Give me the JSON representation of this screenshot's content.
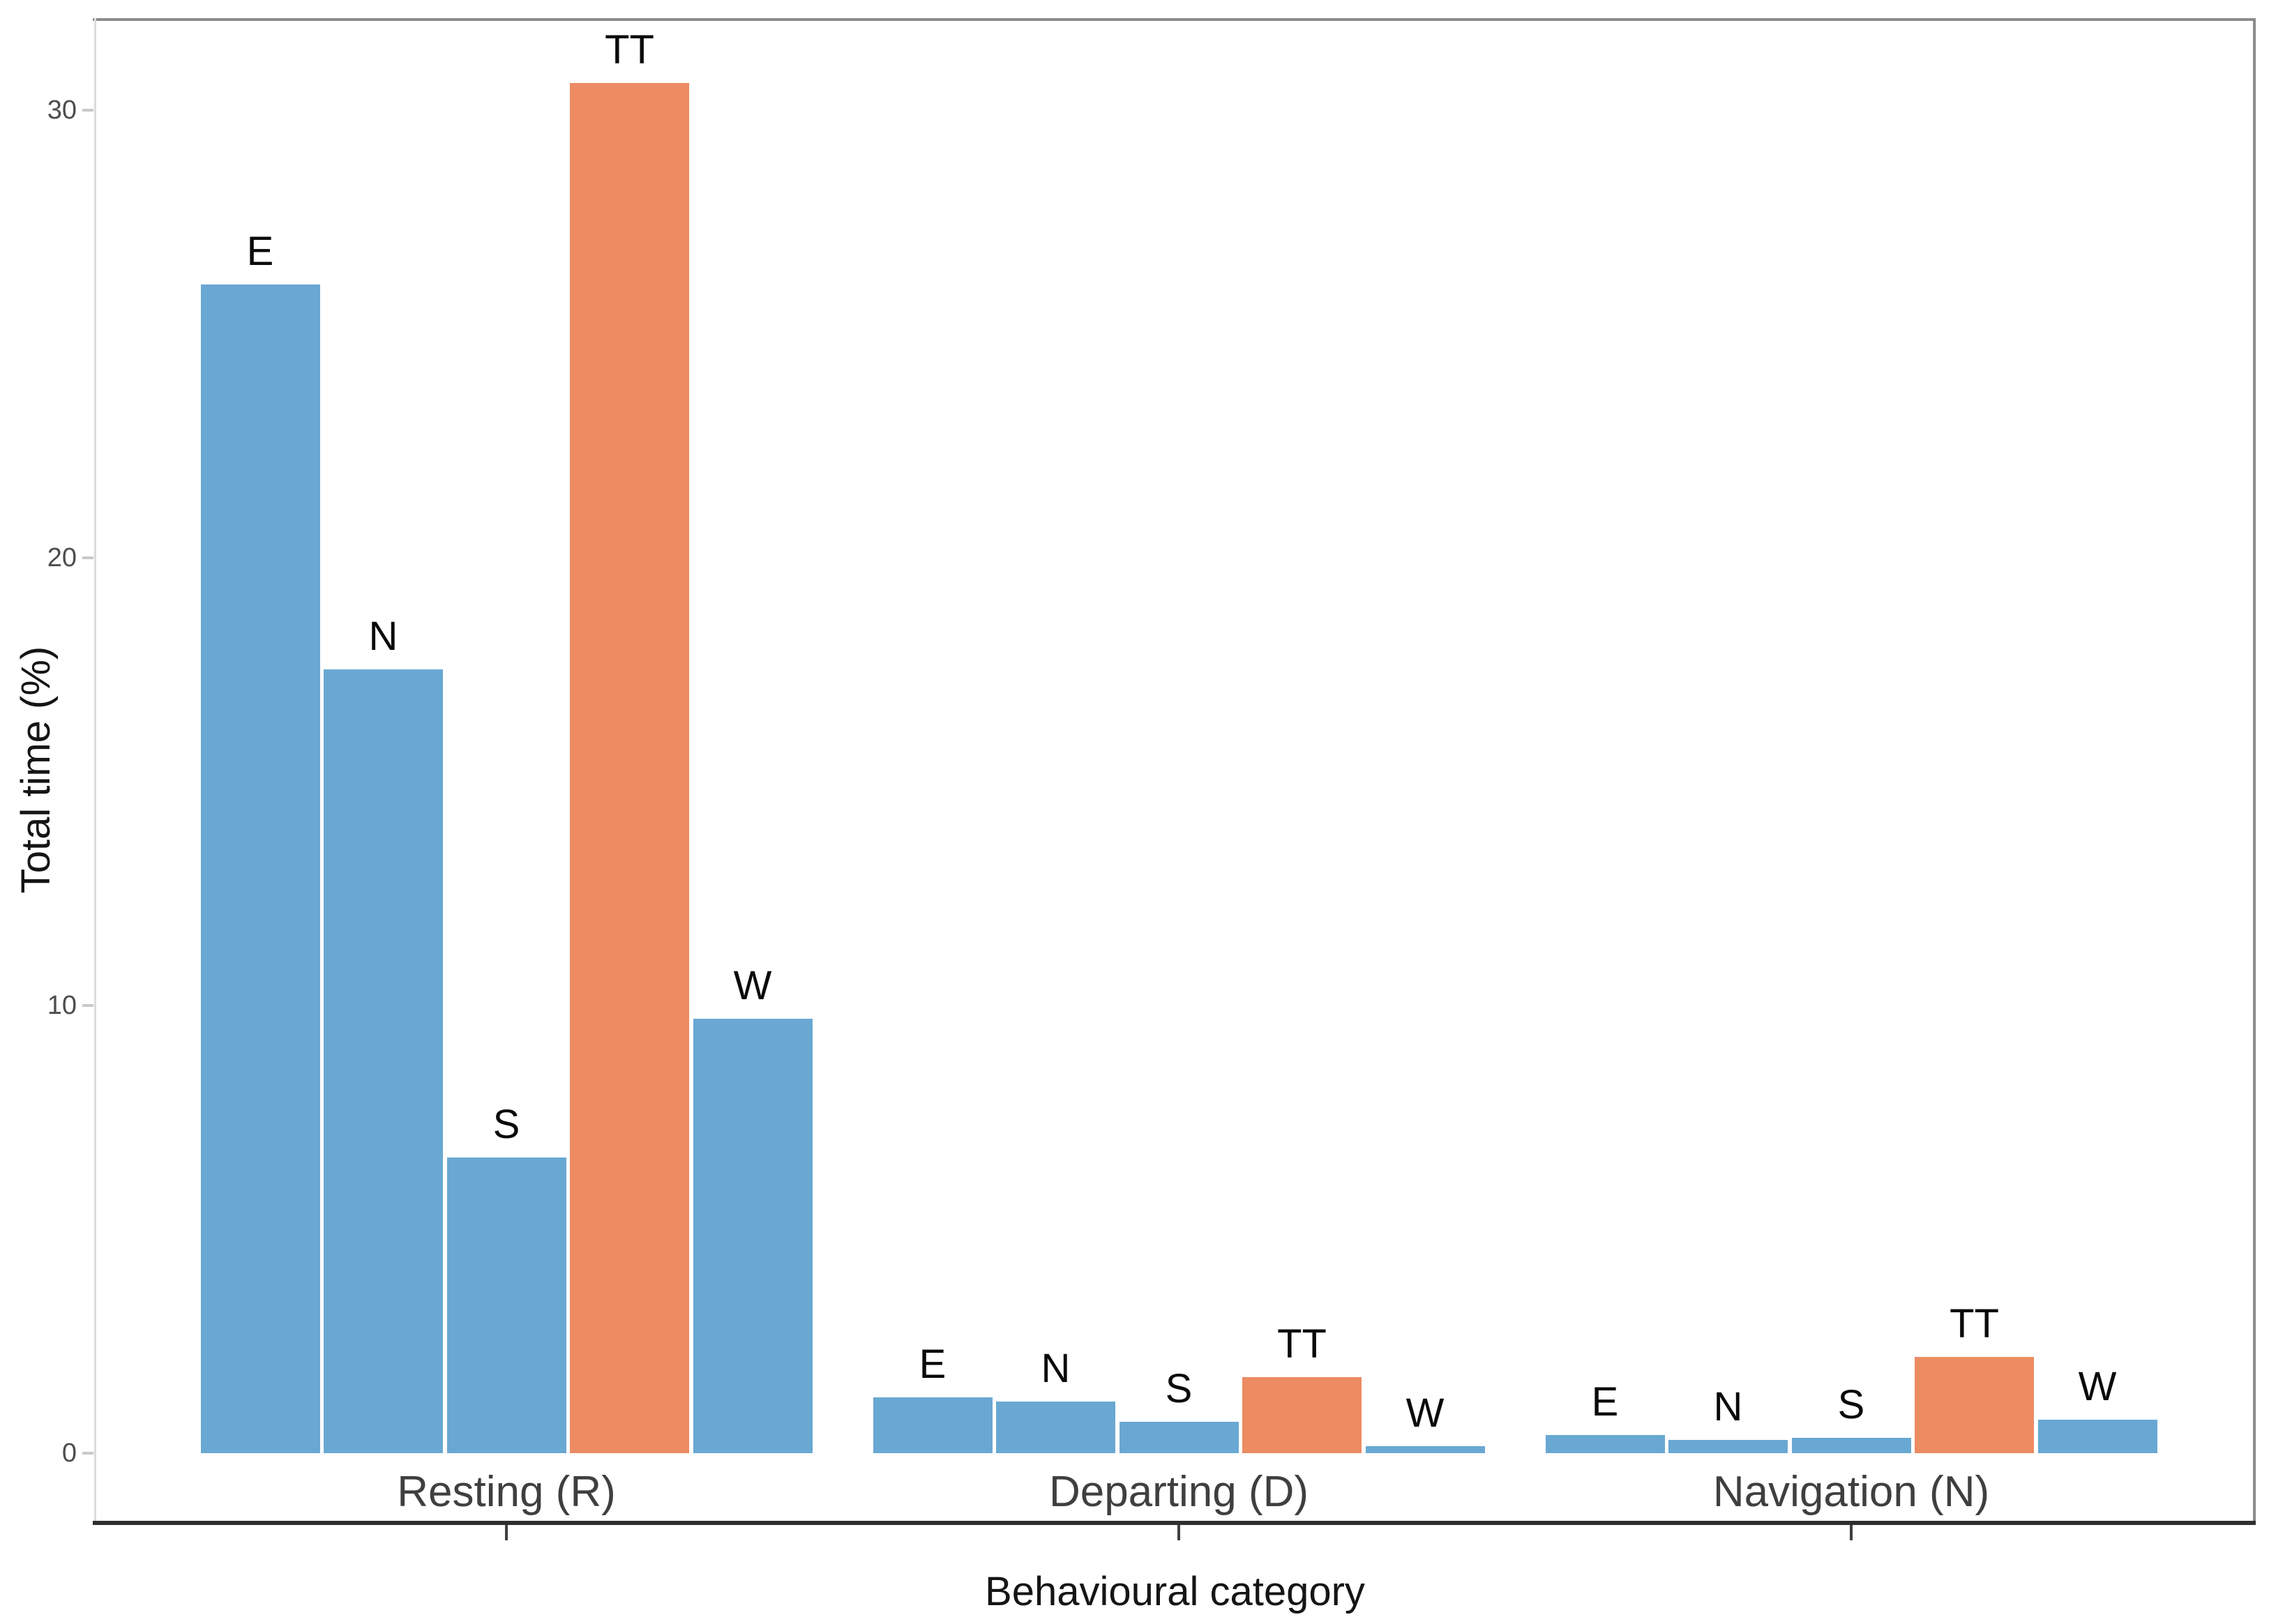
{
  "chart_data": {
    "type": "bar",
    "title": "",
    "xlabel": "Behavioural category",
    "ylabel": "Total time (%)",
    "categories": [
      "Resting (R)",
      "Departing (D)",
      "Navigation (N)"
    ],
    "series": [
      {
        "name": "E",
        "values": [
          26.1,
          1.25,
          0.4
        ]
      },
      {
        "name": "N",
        "values": [
          17.5,
          1.15,
          0.3
        ]
      },
      {
        "name": "S",
        "values": [
          6.6,
          0.7,
          0.35
        ]
      },
      {
        "name": "TT",
        "values": [
          30.6,
          1.7,
          2.15
        ]
      },
      {
        "name": "W",
        "values": [
          9.7,
          0.15,
          0.75
        ]
      }
    ],
    "bar_value_labels": "series letter shown above each bar",
    "yticks": [
      0,
      10,
      20,
      30
    ],
    "ylim": [
      -1.5,
      32.1
    ],
    "grid": false,
    "legend": false,
    "colors": {
      "default_bar": "#69A8D2",
      "highlight_bar": "#ED8B62",
      "highlight_series": "TT",
      "top_right_spine": "#8c8c8c",
      "left_spine": "#dcdcdc",
      "bottom_axis": "#2f2f2f",
      "ytick_text": "#4d4d4d",
      "category_text": "#3f3f3f",
      "axis_title_text": "#151515",
      "background": "#ffffff"
    }
  }
}
